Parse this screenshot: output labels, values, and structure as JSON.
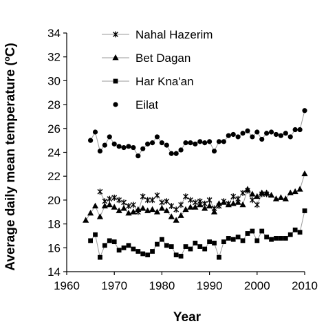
{
  "chart_data": {
    "type": "line",
    "xlabel": "Year",
    "ylabel": "Average daily mean temperature (ºC)",
    "xlim": [
      1960,
      2010
    ],
    "ylim": [
      14,
      34
    ],
    "xticks": [
      "1960",
      "1970",
      "1980",
      "1990",
      "2000",
      "2010"
    ],
    "yticks": [
      "14",
      "16",
      "18",
      "20",
      "22",
      "24",
      "26",
      "28",
      "30",
      "32",
      "34"
    ],
    "grid": false,
    "legend_position": "top-left",
    "colors": {
      "marker": "#000000",
      "line": "#9a9a9a",
      "axis": "#000000"
    },
    "series": [
      {
        "name": "Nahal Hazerim",
        "marker": "asterisk",
        "x": [
          1967,
          1968,
          1969,
          1970,
          1971,
          1972,
          1973,
          1974,
          1975,
          1976,
          1977,
          1978,
          1979,
          1980,
          1981,
          1982,
          1983,
          1984,
          1985,
          1986,
          1987,
          1988,
          1989,
          1990,
          1991,
          1992,
          1993,
          1994,
          1995,
          1996,
          1997,
          1998,
          1999,
          2000,
          2001,
          2002
        ],
        "y": [
          20.7,
          19.9,
          20.1,
          20.2,
          20.0,
          19.8,
          19.5,
          19.6,
          19.0,
          20.3,
          20.0,
          20.0,
          20.4,
          19.8,
          19.9,
          19.5,
          19.2,
          19.6,
          20.3,
          20.0,
          19.8,
          19.9,
          19.7,
          20.0,
          19.3,
          19.5,
          19.9,
          19.7,
          20.3,
          20.1,
          20.6,
          20.8,
          20.0,
          19.6,
          20.5,
          20.5
        ]
      },
      {
        "name": "Bet Dagan",
        "marker": "triangle",
        "x": [
          1964,
          1965,
          1966,
          1967,
          1968,
          1969,
          1970,
          1971,
          1972,
          1973,
          1974,
          1975,
          1976,
          1977,
          1978,
          1979,
          1980,
          1981,
          1982,
          1983,
          1984,
          1985,
          1986,
          1987,
          1988,
          1989,
          1990,
          1991,
          1992,
          1993,
          1994,
          1995,
          1996,
          1997,
          1998,
          1999,
          2000,
          2001,
          2002,
          2003,
          2004,
          2005,
          2006,
          2007,
          2008,
          2009,
          2010
        ],
        "y": [
          18.3,
          18.9,
          19.5,
          18.6,
          19.5,
          19.6,
          19.4,
          19.1,
          19.3,
          18.9,
          19.0,
          19.2,
          19.3,
          19.1,
          19.2,
          19.0,
          19.3,
          19.1,
          18.6,
          18.3,
          18.7,
          19.2,
          19.4,
          19.4,
          19.6,
          19.3,
          19.5,
          19.0,
          19.7,
          19.8,
          19.6,
          19.7,
          19.8,
          19.6,
          20.9,
          20.5,
          20.3,
          20.6,
          20.6,
          20.4,
          20.1,
          20.2,
          20.1,
          20.6,
          20.7,
          20.9,
          22.2
        ]
      },
      {
        "name": "Har Kna'an",
        "marker": "square",
        "x": [
          1965,
          1966,
          1967,
          1968,
          1969,
          1970,
          1971,
          1972,
          1973,
          1974,
          1975,
          1976,
          1977,
          1978,
          1979,
          1980,
          1981,
          1982,
          1983,
          1984,
          1985,
          1986,
          1987,
          1988,
          1989,
          1990,
          1991,
          1992,
          1993,
          1994,
          1995,
          1996,
          1997,
          1998,
          1999,
          2000,
          2001,
          2002,
          2003,
          2004,
          2005,
          2006,
          2007,
          2008,
          2009,
          2010
        ],
        "y": [
          16.6,
          17.1,
          15.2,
          16.2,
          16.6,
          16.5,
          15.8,
          16.0,
          16.2,
          15.9,
          15.7,
          15.5,
          15.4,
          15.7,
          16.3,
          16.7,
          16.2,
          16.1,
          15.4,
          15.3,
          16.1,
          15.9,
          16.4,
          16.1,
          15.9,
          16.5,
          16.4,
          15.2,
          16.5,
          16.8,
          16.7,
          16.9,
          16.6,
          17.2,
          17.4,
          16.6,
          17.4,
          16.9,
          16.7,
          16.8,
          16.8,
          16.8,
          17.1,
          17.5,
          17.3,
          19.1
        ]
      },
      {
        "name": "Eilat",
        "marker": "circle",
        "x": [
          1965,
          1966,
          1967,
          1968,
          1969,
          1970,
          1971,
          1972,
          1973,
          1974,
          1975,
          1976,
          1977,
          1978,
          1979,
          1980,
          1981,
          1982,
          1983,
          1984,
          1985,
          1986,
          1987,
          1988,
          1989,
          1990,
          1991,
          1992,
          1993,
          1994,
          1995,
          1996,
          1997,
          1998,
          1999,
          2000,
          2001,
          2002,
          2003,
          2004,
          2005,
          2006,
          2007,
          2008,
          2009,
          2010
        ],
        "y": [
          25.0,
          25.7,
          24.1,
          24.6,
          25.3,
          24.7,
          24.5,
          24.4,
          24.5,
          24.4,
          23.7,
          24.3,
          24.7,
          24.8,
          25.3,
          24.8,
          24.6,
          23.9,
          23.9,
          24.2,
          24.8,
          24.8,
          24.7,
          24.9,
          24.8,
          24.9,
          24.1,
          24.9,
          24.9,
          25.4,
          25.5,
          25.3,
          25.6,
          25.8,
          25.3,
          25.7,
          25.1,
          25.6,
          25.7,
          25.5,
          25.4,
          25.6,
          25.3,
          25.9,
          25.9,
          27.5
        ]
      }
    ]
  }
}
